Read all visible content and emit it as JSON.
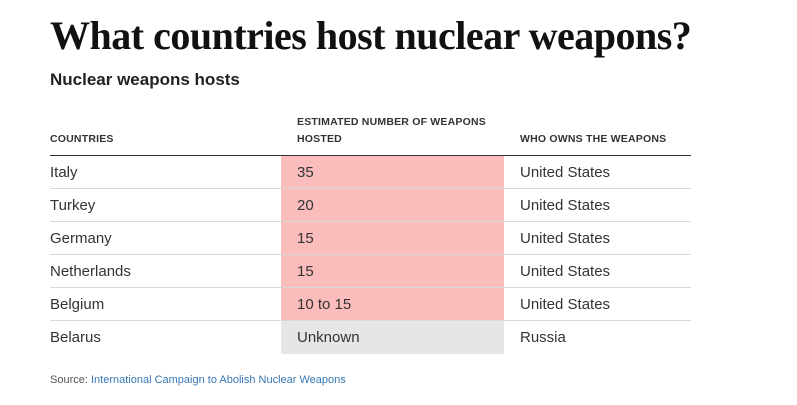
{
  "title": "What countries host nuclear weapons?",
  "subtitle": "Nuclear weapons hosts",
  "chart_data": {
    "type": "table",
    "columns": [
      "COUNTRIES",
      "ESTIMATED NUMBER OF WEAPONS HOSTED",
      "WHO OWNS THE WEAPONS"
    ],
    "rows": [
      {
        "country": "Italy",
        "weapons": "35",
        "owner": "United States",
        "status": "known"
      },
      {
        "country": "Turkey",
        "weapons": "20",
        "owner": "United States",
        "status": "known"
      },
      {
        "country": "Germany",
        "weapons": "15",
        "owner": "United States",
        "status": "known"
      },
      {
        "country": "Netherlands",
        "weapons": "15",
        "owner": "United States",
        "status": "known"
      },
      {
        "country": "Belgium",
        "weapons": "10 to 15",
        "owner": "United States",
        "status": "known"
      },
      {
        "country": "Belarus",
        "weapons": "Unknown",
        "owner": "Russia",
        "status": "unknown"
      }
    ],
    "highlight_colors": {
      "known": "#fbbcbc",
      "unknown": "#e6e6e6"
    }
  },
  "source": {
    "prefix": "Source: ",
    "link_text": "International Campaign to Abolish Nuclear Weapons",
    "link_color": "#3679b5"
  }
}
